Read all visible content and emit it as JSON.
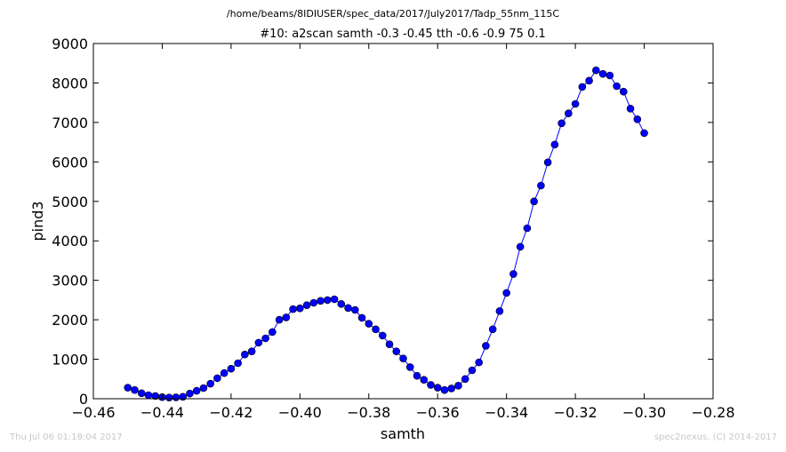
{
  "footer": {
    "timestamp": "Thu Jul 06 01:18:04 2017",
    "credit": "spec2nexus, (C) 2014-2017"
  },
  "colors": {
    "series": "#0000ff",
    "marker_edge": "#000000",
    "axes": "#000000",
    "footer_text": "#c8c8c8"
  },
  "chart_data": {
    "type": "line",
    "title": "/home/beams/8IDIUSER/spec_data/2017/July2017/Tadp_55nm_115C",
    "subtitle": "#10: a2scan  samth -0.3 -0.45  tth -0.6 -0.9  75 0.1",
    "xlabel": "samth",
    "ylabel": "pind3",
    "xlim": [
      -0.46,
      -0.28
    ],
    "ylim": [
      0,
      9000
    ],
    "xticks": [
      -0.46,
      -0.44,
      -0.42,
      -0.4,
      -0.38,
      -0.36,
      -0.34,
      -0.32,
      -0.3,
      -0.28
    ],
    "xtick_labels": [
      "−0.46",
      "−0.44",
      "−0.42",
      "−0.40",
      "−0.38",
      "−0.36",
      "−0.34",
      "−0.32",
      "−0.30",
      "−0.28"
    ],
    "yticks": [
      0,
      1000,
      2000,
      3000,
      4000,
      5000,
      6000,
      7000,
      8000,
      9000
    ],
    "ytick_labels": [
      "0",
      "1000",
      "2000",
      "3000",
      "4000",
      "5000",
      "6000",
      "7000",
      "8000",
      "9000"
    ],
    "grid": false,
    "marker": "circle",
    "series": [
      {
        "x": [
          -0.45,
          -0.448,
          -0.446,
          -0.444,
          -0.442,
          -0.44,
          -0.438,
          -0.436,
          -0.434,
          -0.432,
          -0.43,
          -0.428,
          -0.426,
          -0.424,
          -0.422,
          -0.42,
          -0.418,
          -0.416,
          -0.414,
          -0.412,
          -0.41,
          -0.408,
          -0.406,
          -0.404,
          -0.402,
          -0.4,
          -0.398,
          -0.396,
          -0.394,
          -0.392,
          -0.39,
          -0.388,
          -0.386,
          -0.384,
          -0.382,
          -0.38,
          -0.378,
          -0.376,
          -0.374,
          -0.372,
          -0.37,
          -0.368,
          -0.366,
          -0.364,
          -0.362,
          -0.36,
          -0.358,
          -0.356,
          -0.354,
          -0.352,
          -0.35,
          -0.348,
          -0.346,
          -0.344,
          -0.342,
          -0.34,
          -0.338,
          -0.336,
          -0.334,
          -0.332,
          -0.33,
          -0.328,
          -0.326,
          -0.324,
          -0.322,
          -0.32,
          -0.318,
          -0.316,
          -0.314,
          -0.312,
          -0.31,
          -0.308,
          -0.306,
          -0.304,
          -0.302,
          -0.3
        ],
        "y": [
          280,
          220,
          140,
          90,
          70,
          40,
          30,
          35,
          50,
          130,
          200,
          270,
          380,
          520,
          650,
          760,
          900,
          1120,
          1200,
          1420,
          1530,
          1690,
          2000,
          2060,
          2270,
          2290,
          2370,
          2430,
          2480,
          2500,
          2520,
          2400,
          2300,
          2250,
          2050,
          1900,
          1760,
          1600,
          1380,
          1200,
          1020,
          800,
          580,
          480,
          350,
          280,
          220,
          260,
          330,
          500,
          720,
          920,
          1340,
          1760,
          2220,
          2680,
          3160,
          3850,
          4320,
          5000,
          5400,
          5990,
          6440,
          6980,
          7230,
          7470,
          7900,
          8060,
          8320,
          8230,
          8190,
          7920,
          7780,
          7350,
          7080,
          6730
        ]
      }
    ]
  }
}
